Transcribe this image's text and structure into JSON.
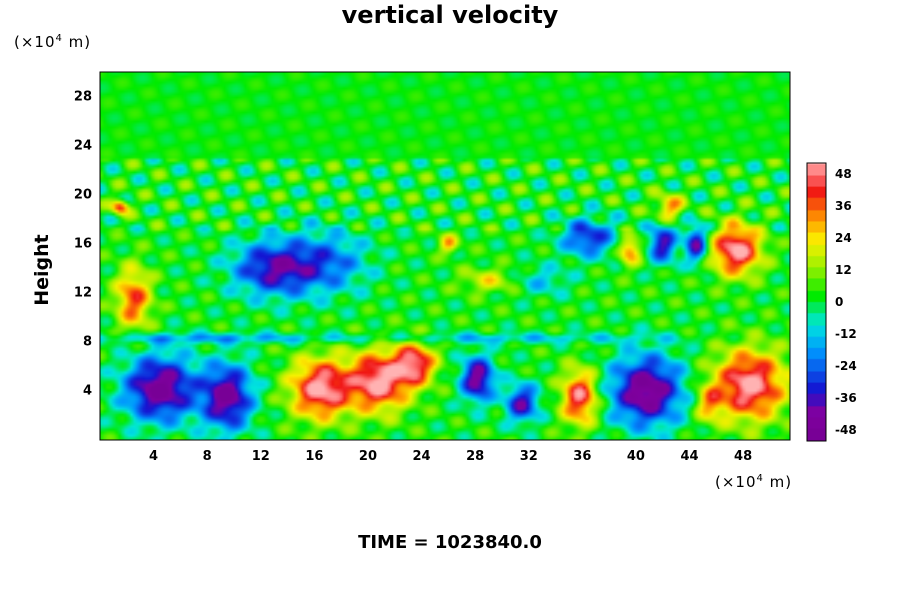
{
  "chart_data": {
    "type": "heatmap",
    "title": "vertical velocity",
    "ylabel": "Height",
    "y_unit": "m",
    "x_unit": "m",
    "unit_scale_base": "(×10",
    "unit_scale_exp": "4",
    "footer": "TIME = 1023840.0",
    "xlim": [
      0,
      51.5
    ],
    "ylim": [
      0,
      30
    ],
    "x_ticks": [
      "4",
      "8",
      "12",
      "16",
      "20",
      "24",
      "28",
      "32",
      "36",
      "40",
      "44",
      "48"
    ],
    "y_ticks": [
      "4",
      "8",
      "12",
      "16",
      "20",
      "24",
      "28"
    ],
    "colorbar": {
      "range": [
        -52,
        52
      ],
      "ticks": [
        "48",
        "36",
        "24",
        "12",
        "0",
        "-12",
        "-24",
        "-36",
        "-48"
      ]
    },
    "features": [
      {
        "x": 4.5,
        "y": 4.2,
        "sx": 2.6,
        "sy": 2.6,
        "value": -52
      },
      {
        "x": 9.5,
        "y": 3.5,
        "sx": 1.8,
        "sy": 2.6,
        "value": -50
      },
      {
        "x": 16.5,
        "y": 4.2,
        "sx": 2.2,
        "sy": 2.4,
        "value": 52
      },
      {
        "x": 20.8,
        "y": 4.8,
        "sx": 2.2,
        "sy": 2.4,
        "value": 52
      },
      {
        "x": 23.5,
        "y": 6.2,
        "sx": 1.5,
        "sy": 1.7,
        "value": 45
      },
      {
        "x": 28.2,
        "y": 5.0,
        "sx": 1.2,
        "sy": 1.8,
        "value": -48
      },
      {
        "x": 31.5,
        "y": 3.0,
        "sx": 1.2,
        "sy": 1.5,
        "value": -40
      },
      {
        "x": 35.8,
        "y": 3.5,
        "sx": 1.3,
        "sy": 2.2,
        "value": 46
      },
      {
        "x": 40.8,
        "y": 4.0,
        "sx": 2.6,
        "sy": 2.8,
        "value": -52
      },
      {
        "x": 45.5,
        "y": 3.0,
        "sx": 1.0,
        "sy": 1.5,
        "value": 25
      },
      {
        "x": 48.5,
        "y": 4.5,
        "sx": 2.6,
        "sy": 2.8,
        "value": 52
      },
      {
        "x": 47.5,
        "y": 15.5,
        "sx": 1.8,
        "sy": 2.0,
        "value": 52
      },
      {
        "x": 13.0,
        "y": 14.0,
        "sx": 3.0,
        "sy": 2.2,
        "value": -40
      },
      {
        "x": 17.0,
        "y": 14.5,
        "sx": 3.0,
        "sy": 2.5,
        "value": -24
      },
      {
        "x": 2.5,
        "y": 11.5,
        "sx": 1.3,
        "sy": 2.5,
        "value": 36
      },
      {
        "x": 1.5,
        "y": 19.0,
        "sx": 0.6,
        "sy": 0.6,
        "value": 40
      },
      {
        "x": 36.5,
        "y": 16.5,
        "sx": 2.0,
        "sy": 1.5,
        "value": -34
      },
      {
        "x": 42.0,
        "y": 16.0,
        "sx": 1.0,
        "sy": 1.5,
        "value": -40
      },
      {
        "x": 44.5,
        "y": 16.0,
        "sx": 0.8,
        "sy": 1.5,
        "value": -42
      },
      {
        "x": 39.5,
        "y": 15.5,
        "sx": 0.8,
        "sy": 1.2,
        "value": 34
      },
      {
        "x": 33.0,
        "y": 13.0,
        "sx": 2.0,
        "sy": 1.2,
        "value": -14
      },
      {
        "x": 29.0,
        "y": 13.0,
        "sx": 2.0,
        "sy": 1.0,
        "value": 18
      },
      {
        "x": 8.0,
        "y": 8.3,
        "sx": 10,
        "sy": 0.4,
        "value": -18
      },
      {
        "x": 30.0,
        "y": 8.3,
        "sx": 12,
        "sy": 0.4,
        "value": -14
      },
      {
        "x": 26.0,
        "y": 16.0,
        "sx": 0.7,
        "sy": 0.8,
        "value": 26
      },
      {
        "x": 42.5,
        "y": 19.0,
        "sx": 1.0,
        "sy": 1.0,
        "value": 30
      }
    ]
  }
}
